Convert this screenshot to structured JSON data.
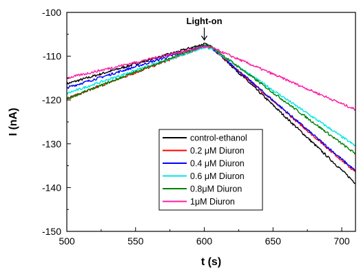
{
  "chart_data": {
    "type": "line",
    "xlabel": "t (s)",
    "ylabel": "I (nA)",
    "xlim": [
      500,
      710
    ],
    "ylim": [
      -150,
      -100
    ],
    "x_ticks": [
      500,
      550,
      600,
      650,
      700
    ],
    "y_ticks": [
      -150,
      -140,
      -130,
      -120,
      -110,
      -100
    ],
    "grid": false,
    "legend_position": "center-bottom",
    "annotation": {
      "text": "Light-on",
      "x": 600,
      "y": -106
    },
    "series": [
      {
        "name": "control-ethanol",
        "color": "#000000",
        "x": [
          500,
          600,
          605,
          710
        ],
        "y": [
          -116.3,
          -107.2,
          -107.8,
          -139.0
        ]
      },
      {
        "name": "0.2 μM Diuron",
        "color": "#ff0000",
        "x": [
          500,
          600,
          605,
          710
        ],
        "y": [
          -119.7,
          -107.8,
          -108.0,
          -136.5
        ]
      },
      {
        "name": "0.4 μM Diuron",
        "color": "#0000ff",
        "x": [
          500,
          600,
          605,
          710
        ],
        "y": [
          -117.2,
          -107.6,
          -108.0,
          -136.2
        ]
      },
      {
        "name": "0.6 μM Diuron",
        "color": "#00e5e5",
        "x": [
          500,
          600,
          605,
          710
        ],
        "y": [
          -118.5,
          -108.0,
          -108.2,
          -130.5
        ]
      },
      {
        "name": "0.8μM Diuron",
        "color": "#008000",
        "x": [
          500,
          600,
          605,
          710
        ],
        "y": [
          -119.7,
          -107.5,
          -107.8,
          -132.3
        ]
      },
      {
        "name": "1μM Diuron",
        "color": "#ff1aa3",
        "x": [
          500,
          600,
          605,
          710
        ],
        "y": [
          -115.0,
          -107.8,
          -108.0,
          -122.2
        ]
      }
    ]
  }
}
